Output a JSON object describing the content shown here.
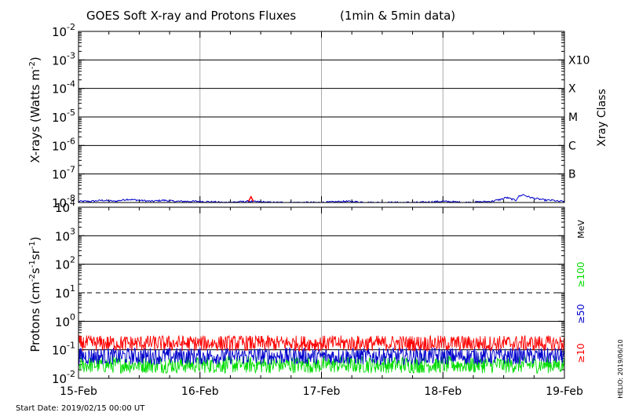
{
  "chart_data": [
    {
      "type": "line",
      "title": "GOES Soft X-ray and Protons Fluxes",
      "subtitle": "(1min & 5min data)",
      "ylabel_main": "X-rays (Watts m",
      "ylabel_sup": "-2",
      "ylabel_close": ")",
      "yscale": "log",
      "ylim": [
        1e-08,
        0.01
      ],
      "ytick_exponents": [
        "-8",
        "-7",
        "-6",
        "-5",
        "-4",
        "-3",
        "-2"
      ],
      "ytick_base": "10",
      "right_axis_title": "Xray Class",
      "class_labels": [
        "B",
        "C",
        "M",
        "X",
        "X10"
      ],
      "class_exponents": [
        -7,
        -6,
        -5,
        -4,
        -3
      ],
      "series": [
        {
          "color": "#0000cc",
          "x": [
            0.0,
            0.1,
            0.2,
            0.3,
            0.4,
            0.5,
            0.6,
            0.7,
            0.8,
            0.9,
            1.0,
            1.2,
            1.4,
            1.6,
            1.8,
            2.0,
            2.2,
            2.4,
            2.6,
            2.8,
            3.0,
            3.2,
            3.4,
            3.48,
            3.52,
            3.6,
            3.62,
            3.66,
            3.7,
            3.75,
            3.8,
            3.85,
            3.9,
            3.95,
            4.0
          ],
          "y": [
            1.1e-08,
            1.1e-08,
            1.2e-08,
            1.1e-08,
            1.3e-08,
            1.2e-08,
            1.1e-08,
            1.2e-08,
            1.1e-08,
            1.1e-08,
            1.1e-08,
            1e-08,
            1.1e-08,
            1e-08,
            1e-08,
            1e-08,
            1.1e-08,
            1e-08,
            1e-08,
            1e-08,
            1.1e-08,
            1e-08,
            1.1e-08,
            1.3e-08,
            1.5e-08,
            1.2e-08,
            1.6e-08,
            1.9e-08,
            1.6e-08,
            1.4e-08,
            1.3e-08,
            1.2e-08,
            1.2e-08,
            1.1e-08,
            1.1e-08
          ]
        },
        {
          "color": "#ff0000",
          "x": [
            1.4,
            1.42,
            1.44
          ],
          "y": [
            1.1e-08,
            1.6e-08,
            1.1e-08
          ]
        }
      ]
    },
    {
      "type": "line",
      "ylabel_main": "Protons (cm",
      "ylabel_sup1": "-2",
      "ylabel_mid": "s",
      "ylabel_sup2": "-1",
      "ylabel_mid2": "sr",
      "ylabel_sup3": "-1",
      "ylabel_close": ")",
      "yscale": "log",
      "ylim": [
        0.01,
        10000
      ],
      "ytick_exponents": [
        "-2",
        "-1",
        "0",
        "1",
        "2",
        "3",
        "4"
      ],
      "ytick_base": "10",
      "threshold": 10,
      "energy_unit": "MeV",
      "series": [
        {
          "name": "≥100",
          "color": "#00dd00",
          "level": 0.03
        },
        {
          "name": "≥50",
          "color": "#0000cc",
          "level": 0.06
        },
        {
          "name": "≥10",
          "color": "#ff0000",
          "level": 0.17
        }
      ]
    }
  ],
  "x_axis": {
    "tick_labels": [
      "15-Feb",
      "16-Feb",
      "17-Feb",
      "18-Feb",
      "19-Feb"
    ],
    "range_days": [
      0,
      4
    ]
  },
  "footer": {
    "start_date": "Start Date: 2019/02/15 00:00 UT",
    "credit": "HELIO: 2019/06/10"
  }
}
